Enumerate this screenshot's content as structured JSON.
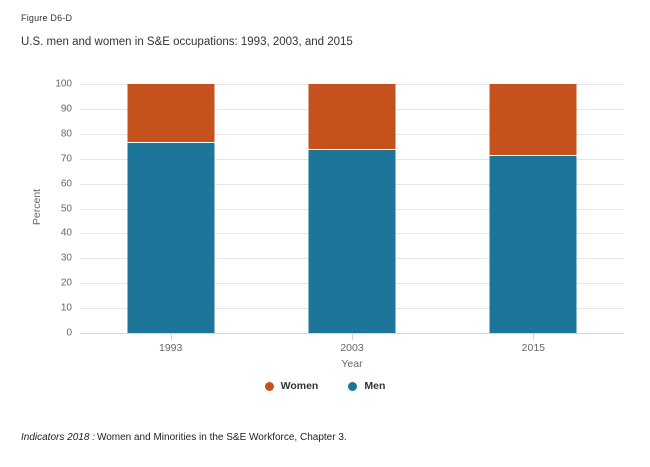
{
  "figure_label": "Figure D6-D",
  "title": "U.S. men and women in S&E occupations: 1993, 2003, and 2015",
  "chart_data": {
    "type": "bar",
    "stacked": true,
    "categories": [
      "1993",
      "2003",
      "2015"
    ],
    "series": [
      {
        "name": "Men",
        "color": "#1d7599",
        "values": [
          76.9,
          73.9,
          71.6
        ]
      },
      {
        "name": "Women",
        "color": "#c5521c",
        "values": [
          23.1,
          26.1,
          28.4
        ]
      }
    ],
    "xlabel": "Year",
    "ylabel": "Percent",
    "ylim": [
      0,
      100
    ],
    "yticks": [
      0,
      10,
      20,
      30,
      40,
      50,
      60,
      70,
      80,
      90,
      100
    ],
    "grid": true,
    "legend_position": "bottom"
  },
  "legend": {
    "items": [
      {
        "label": "Women",
        "color": "#c5521c"
      },
      {
        "label": "Men",
        "color": "#1d7599"
      }
    ]
  },
  "footer": {
    "source_italic": "Indicators 2018 :",
    "source_text": "Women and Minorities in the S&E Workforce, Chapter 3."
  },
  "colors": {
    "axis_line": "#ccd6eb",
    "gridline": "#e6e6e6",
    "tick_label": "#666666",
    "title_text": "#333333"
  }
}
